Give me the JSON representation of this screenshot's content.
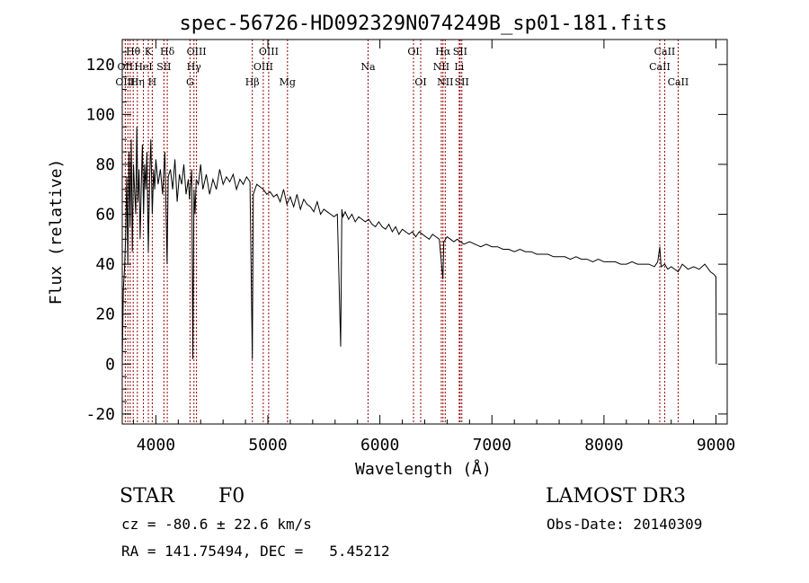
{
  "chart_data": {
    "type": "line",
    "title": "spec-56726-HD092329N074249B_sp01-181.fits",
    "xlabel": "Wavelength (Å)",
    "ylabel": "Flux (relative)",
    "xlim": [
      3700,
      9100
    ],
    "ylim": [
      -24,
      130
    ],
    "xticks": [
      4000,
      5000,
      6000,
      7000,
      8000,
      9000
    ],
    "yticks": [
      -20,
      0,
      20,
      40,
      60,
      80,
      100,
      120
    ],
    "series": [
      {
        "name": "spectrum",
        "x": [
          3700,
          3710,
          3720,
          3730,
          3740,
          3750,
          3760,
          3770,
          3780,
          3790,
          3800,
          3810,
          3820,
          3830,
          3840,
          3850,
          3860,
          3870,
          3880,
          3890,
          3900,
          3910,
          3920,
          3933,
          3945,
          3955,
          3968,
          3980,
          3990,
          4000,
          4020,
          4040,
          4060,
          4080,
          4100,
          4110,
          4130,
          4150,
          4170,
          4190,
          4210,
          4230,
          4250,
          4270,
          4290,
          4300,
          4320,
          4330,
          4340,
          4350,
          4360,
          4380,
          4400,
          4420,
          4450,
          4480,
          4510,
          4540,
          4570,
          4600,
          4630,
          4660,
          4690,
          4720,
          4750,
          4780,
          4810,
          4840,
          4861,
          4870,
          4900,
          4930,
          4960,
          4990,
          5020,
          5050,
          5080,
          5110,
          5140,
          5170,
          5200,
          5230,
          5260,
          5290,
          5320,
          5350,
          5380,
          5410,
          5440,
          5470,
          5500,
          5530,
          5560,
          5590,
          5620,
          5650,
          5660,
          5670,
          5690,
          5720,
          5750,
          5780,
          5810,
          5840,
          5870,
          5900,
          5930,
          5960,
          5990,
          6020,
          6050,
          6080,
          6110,
          6140,
          6170,
          6200,
          6230,
          6260,
          6290,
          6320,
          6350,
          6380,
          6410,
          6440,
          6470,
          6500,
          6530,
          6562,
          6570,
          6600,
          6630,
          6660,
          6690,
          6720,
          6750,
          6800,
          6850,
          6900,
          6950,
          7000,
          7050,
          7100,
          7150,
          7200,
          7250,
          7300,
          7350,
          7400,
          7450,
          7500,
          7550,
          7600,
          7650,
          7700,
          7750,
          7800,
          7850,
          7900,
          7950,
          8000,
          8050,
          8100,
          8150,
          8200,
          8250,
          8300,
          8350,
          8400,
          8450,
          8480,
          8498,
          8510,
          8542,
          8570,
          8600,
          8662,
          8700,
          8750,
          8800,
          8850,
          8900,
          8950,
          8980,
          9000,
          9002
        ],
        "values": [
          0,
          30,
          38,
          50,
          75,
          40,
          85,
          55,
          90,
          45,
          80,
          70,
          60,
          95,
          65,
          78,
          50,
          72,
          88,
          60,
          80,
          70,
          85,
          45,
          75,
          90,
          60,
          78,
          70,
          82,
          72,
          78,
          68,
          85,
          40,
          75,
          78,
          70,
          82,
          65,
          76,
          72,
          80,
          68,
          74,
          66,
          78,
          2,
          70,
          60,
          74,
          72,
          80,
          70,
          76,
          68,
          74,
          70,
          78,
          72,
          75,
          73,
          76,
          70,
          74,
          72,
          75,
          73,
          2,
          68,
          72,
          71,
          70,
          68,
          69,
          67,
          68,
          65,
          70,
          64,
          67,
          63,
          68,
          62,
          66,
          64,
          63,
          61,
          65,
          60,
          62,
          61,
          60,
          59,
          60,
          7,
          62,
          59,
          61,
          58,
          60,
          57,
          59,
          58,
          57,
          58,
          56,
          55,
          57,
          55,
          54,
          56,
          53,
          55,
          52,
          54,
          53,
          52,
          53,
          51,
          53,
          52,
          51,
          50,
          52,
          51,
          50,
          34,
          49,
          51,
          50,
          49,
          50,
          49,
          48,
          49,
          48,
          47,
          48,
          47,
          47,
          46,
          46,
          45,
          46,
          45,
          45,
          44,
          44,
          44,
          43,
          43,
          43,
          42,
          43,
          42,
          42,
          41,
          42,
          41,
          41,
          41,
          40,
          40,
          41,
          40,
          40,
          40,
          39,
          41,
          47,
          39,
          40,
          38,
          39,
          37,
          40,
          38,
          39,
          38,
          40,
          37,
          36,
          35,
          0
        ]
      }
    ],
    "line_labels": [
      {
        "label": "Hθ",
        "x": 3798,
        "row": 1
      },
      {
        "label": "OII",
        "x": 3727,
        "row": 2
      },
      {
        "label": "OIII",
        "x": 3727,
        "row": 3
      },
      {
        "label": "K",
        "x": 3933,
        "row": 1
      },
      {
        "label": "HeI",
        "x": 3889,
        "row": 2
      },
      {
        "label": "Hη",
        "x": 3835,
        "row": 3
      },
      {
        "label": "Hδ",
        "x": 4102,
        "row": 1
      },
      {
        "label": "SII",
        "x": 4072,
        "row": 2
      },
      {
        "label": "H",
        "x": 3968,
        "row": 3
      },
      {
        "label": "OIII",
        "x": 4363,
        "row": 1
      },
      {
        "label": "Hγ",
        "x": 4340,
        "row": 2
      },
      {
        "label": "G",
        "x": 4305,
        "row": 3
      },
      {
        "label": "OIII",
        "x": 5007,
        "row": 1
      },
      {
        "label": "OIII",
        "x": 4959,
        "row": 2
      },
      {
        "label": "Hβ",
        "x": 4861,
        "row": 3
      },
      {
        "label": "Mg",
        "x": 5175,
        "row": 3
      },
      {
        "label": "Na",
        "x": 5894,
        "row": 2
      },
      {
        "label": "OI",
        "x": 6300,
        "row": 1
      },
      {
        "label": "OI",
        "x": 6364,
        "row": 3
      },
      {
        "label": "Hα",
        "x": 6563,
        "row": 1
      },
      {
        "label": "NII",
        "x": 6548,
        "row": 2
      },
      {
        "label": "NII",
        "x": 6583,
        "row": 3
      },
      {
        "label": "SII",
        "x": 6716,
        "row": 1
      },
      {
        "label": "Li",
        "x": 6708,
        "row": 2
      },
      {
        "label": "SII",
        "x": 6731,
        "row": 3
      },
      {
        "label": "CaII",
        "x": 8542,
        "row": 1
      },
      {
        "label": "CaII",
        "x": 8498,
        "row": 2
      },
      {
        "label": "CaII",
        "x": 8662,
        "row": 3
      }
    ],
    "line_markers": [
      3727,
      3750,
      3771,
      3798,
      3835,
      3889,
      3933,
      3968,
      4072,
      4102,
      4305,
      4340,
      4363,
      4861,
      4959,
      5007,
      5175,
      5894,
      6300,
      6364,
      6548,
      6563,
      6583,
      6708,
      6716,
      6731,
      8498,
      8542,
      8662
    ],
    "marker_color": "#990000",
    "line_color": "#000000"
  },
  "info": {
    "object_class": "STAR",
    "subclass": "F0",
    "survey": "LAMOST DR3",
    "cz": "cz = -80.6 ± 22.6 km/s",
    "obs_date": "Obs-Date: 20140309",
    "coords": "RA = 141.75494, DEC =   5.45212"
  }
}
